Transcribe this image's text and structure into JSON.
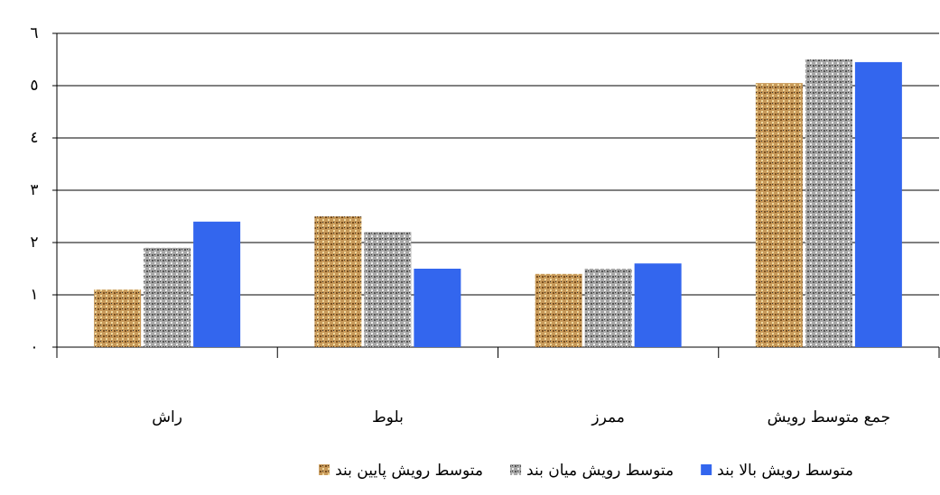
{
  "chart_data": {
    "type": "bar",
    "categories": [
      "راش",
      "بلوط",
      "ممرز",
      "جمع متوسط رویش"
    ],
    "series": [
      {
        "name": "متوسط رویش پایین بند",
        "color": "#c89a5a",
        "values": [
          1.1,
          2.5,
          1.4,
          5.05
        ]
      },
      {
        "name": "متوسط رویش میان بند",
        "color": "#a8a8a8",
        "values": [
          1.9,
          2.2,
          1.5,
          5.5
        ]
      },
      {
        "name": "متوسط رویش بالا بند",
        "color": "#3366ee",
        "values": [
          2.4,
          1.5,
          1.6,
          5.45
        ]
      }
    ],
    "ylim": [
      0,
      6
    ],
    "yticks": [
      {
        "value": 0,
        "label": "٠"
      },
      {
        "value": 1,
        "label": "١"
      },
      {
        "value": 2,
        "label": "٢"
      },
      {
        "value": 3,
        "label": "٣"
      },
      {
        "value": 4,
        "label": "٤"
      },
      {
        "value": 5,
        "label": "٥"
      },
      {
        "value": 6,
        "label": "٦"
      }
    ],
    "grid": true,
    "legend": "bottom"
  }
}
